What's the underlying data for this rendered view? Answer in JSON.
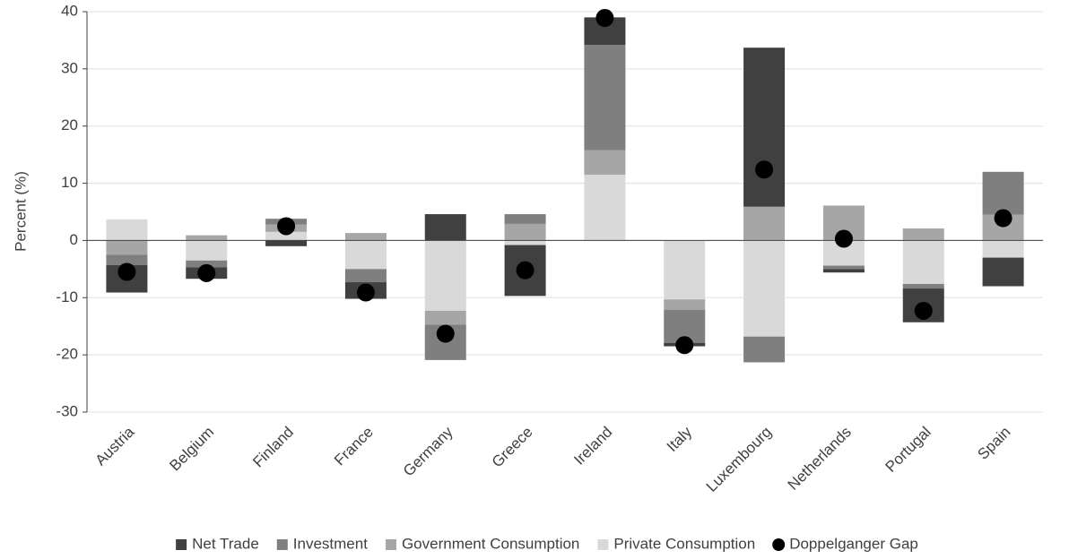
{
  "chart_data": {
    "type": "bar",
    "stacked": true,
    "y_label": "Percent (%)",
    "categories": [
      "Austria",
      "Belgium",
      "Finland",
      "France",
      "Germany",
      "Greece",
      "Ireland",
      "Italy",
      "Luxembourg",
      "Netherlands",
      "Portugal",
      "Spain"
    ],
    "series": [
      {
        "name": "Net Trade",
        "color": "#404040",
        "values": [
          -4.8,
          -2.0,
          -1.0,
          -2.9,
          4.6,
          -8.9,
          4.8,
          -0.6,
          27.8,
          -0.6,
          -5.9,
          -5.0
        ]
      },
      {
        "name": "Investment",
        "color": "#7f7f7f",
        "values": [
          -1.8,
          -1.2,
          1.0,
          -2.3,
          -6.2,
          1.7,
          18.4,
          -5.8,
          -4.5,
          -0.6,
          -0.8,
          7.5
        ]
      },
      {
        "name": "Government Consumption",
        "color": "#a6a6a6",
        "values": [
          -2.5,
          0.9,
          1.3,
          1.3,
          -2.4,
          2.9,
          4.3,
          -1.8,
          5.9,
          6.1,
          2.1,
          4.5
        ]
      },
      {
        "name": "Private Consumption",
        "color": "#d9d9d9",
        "values": [
          3.7,
          -3.5,
          1.5,
          -5.0,
          -12.3,
          -0.8,
          11.5,
          -10.3,
          -16.8,
          -4.4,
          -7.6,
          -3.0
        ]
      },
      {
        "name": "Doppelganger Gap",
        "color": "#000000",
        "type": "scatter",
        "values": [
          -5.5,
          -5.7,
          2.5,
          -9.1,
          -16.3,
          -5.2,
          38.9,
          -18.3,
          12.4,
          0.3,
          -12.3,
          3.9
        ]
      }
    ],
    "ylim": [
      -30,
      40
    ],
    "yticks": [
      -30,
      -20,
      -10,
      0,
      10,
      20,
      30,
      40
    ],
    "grid": true,
    "legend": "bottom"
  }
}
